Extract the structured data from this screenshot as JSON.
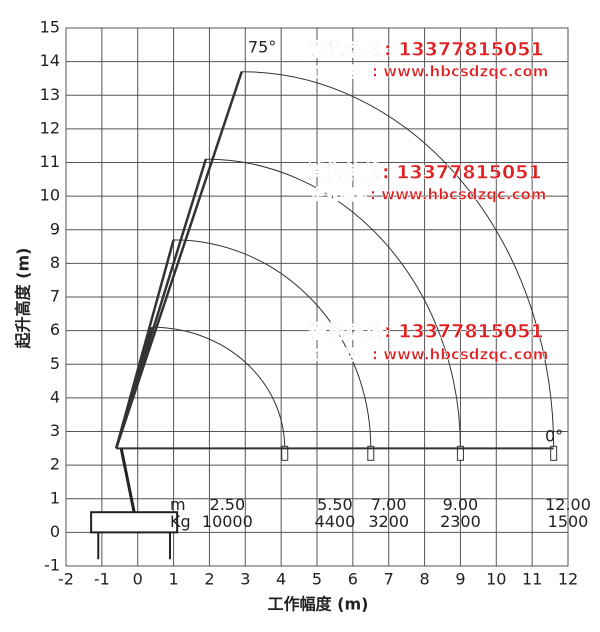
{
  "chart_data": {
    "type": "crane-range",
    "x_label": "工作幅度 (m)",
    "y_label": "起升高度 (m)",
    "xlim": [
      -2,
      12
    ],
    "xticks": [
      -2,
      -1,
      0,
      1,
      2,
      3,
      4,
      5,
      6,
      7,
      8,
      9,
      10,
      11,
      12
    ],
    "ylim": [
      -1,
      15
    ],
    "yticks": [
      -1,
      0,
      1,
      2,
      3,
      4,
      5,
      6,
      7,
      8,
      9,
      10,
      11,
      12,
      13,
      14,
      15
    ],
    "grid": true,
    "arcs": {
      "x_at_0": [
        4.1,
        6.5,
        9.0,
        11.6
      ],
      "y_at_0": [
        2.5,
        2.5,
        2.5,
        2.5
      ],
      "x_at_75": [
        0.4,
        1.0,
        1.9,
        2.9
      ],
      "y_at_75": [
        6.1,
        8.7,
        11.1,
        13.7
      ],
      "color": "#333333"
    },
    "annotations": [
      "75°",
      "0°"
    ],
    "load_table": {
      "radius_title": "m",
      "load_title": "Kg",
      "radius": [
        2.5,
        5.5,
        7.0,
        9.0,
        12.0
      ],
      "radius_labels": [
        "2.50",
        "5.50",
        "7.00",
        "9.00",
        "12.00"
      ],
      "load": [
        10000,
        4400,
        3200,
        2300,
        1500
      ]
    },
    "watermarks": [
      {
        "phone": "销售热线: 13377815051",
        "site": "企业网址: www.hbcsdzqc.com"
      },
      {
        "phone": "销售热线: 13377815051",
        "site": "企业网址: www.hbcsdzqc.com"
      },
      {
        "phone": "销售热线: 13377815051",
        "site": "企业网址: www.hbcsdzqc.com"
      }
    ]
  }
}
